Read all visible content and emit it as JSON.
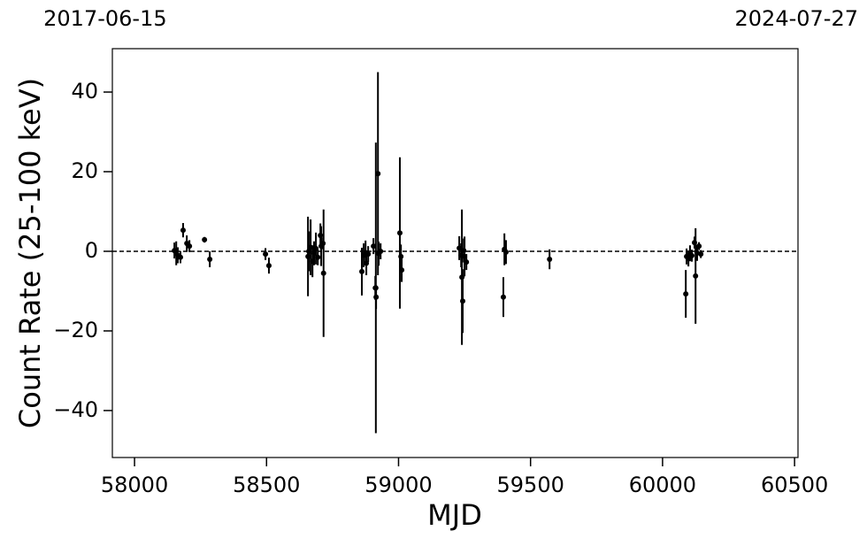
{
  "chart_data": {
    "type": "errorbar",
    "xlabel": "MJD",
    "ylabel": "Count Rate (25-100 keV)",
    "xlim": [
      57916,
      60513
    ],
    "ylim": [
      -51.8,
      50.9
    ],
    "xticks": [
      58000,
      58500,
      59000,
      59500,
      60000,
      60500
    ],
    "yticks": [
      {
        "value": -40,
        "label": "−40"
      },
      {
        "value": -20,
        "label": "−20"
      },
      0,
      20,
      40
    ],
    "top_labels": [
      {
        "value": 57919,
        "label": "2017-06-15"
      },
      {
        "value": 60518,
        "label": "2024-07-27"
      }
    ],
    "reference_line": 0,
    "color": "#000000",
    "series": [
      {
        "name": "data",
        "x": [
          58151,
          58158,
          58164,
          58174,
          58184,
          58198,
          58208,
          58265,
          58285,
          58496,
          58509,
          58657,
          58660,
          58667,
          58674,
          58680,
          58687,
          58694,
          58704,
          58707,
          58714,
          58716,
          58861,
          58868,
          58875,
          58878,
          58885,
          58905,
          58912,
          58914,
          58915,
          58922,
          58925,
          58932,
          59005,
          59009,
          59012,
          59230,
          59237,
          59240,
          59243,
          59247,
          59250,
          59257,
          59397,
          59401,
          59407,
          59572,
          60088,
          60091,
          60098,
          60104,
          60111,
          60121,
          60125,
          60131,
          60138,
          60145
        ],
        "values": [
          0.2,
          -0.5,
          -1,
          -1.5,
          5.3,
          2,
          1.3,
          2.9,
          -2,
          -0.7,
          -3.6,
          -1.3,
          0,
          1,
          -2.5,
          -0.5,
          0.7,
          -1.5,
          4,
          1.3,
          2,
          -5.5,
          -5.1,
          -1,
          -0.3,
          -3,
          -0.7,
          1.3,
          -9.2,
          -9.2,
          -11.5,
          19.5,
          -0.6,
          0,
          4.6,
          -1.3,
          -4.7,
          0.8,
          -1,
          -6.5,
          -12.5,
          0.2,
          -1.3,
          -2.7,
          -11.5,
          0.5,
          -0.2,
          -2,
          -10.7,
          -1.3,
          -1.8,
          -0.5,
          -1.1,
          2.2,
          -6.2,
          -0.4,
          1.3,
          -0.7
        ],
        "errors": [
          2,
          3,
          2,
          1.5,
          1.8,
          2,
          1.5,
          0.7,
          2,
          1.5,
          2,
          10,
          5,
          7,
          4,
          3,
          4,
          2,
          3,
          5,
          1.5,
          16,
          6,
          3,
          3,
          3,
          2,
          2,
          3,
          36.5,
          3,
          25.5,
          3,
          2,
          19,
          3,
          3,
          3,
          3,
          17,
          8,
          3,
          5,
          2,
          5,
          4,
          3,
          2.5,
          6,
          2,
          2,
          2,
          1.5,
          1.5,
          12,
          2,
          1,
          1
        ]
      }
    ]
  }
}
